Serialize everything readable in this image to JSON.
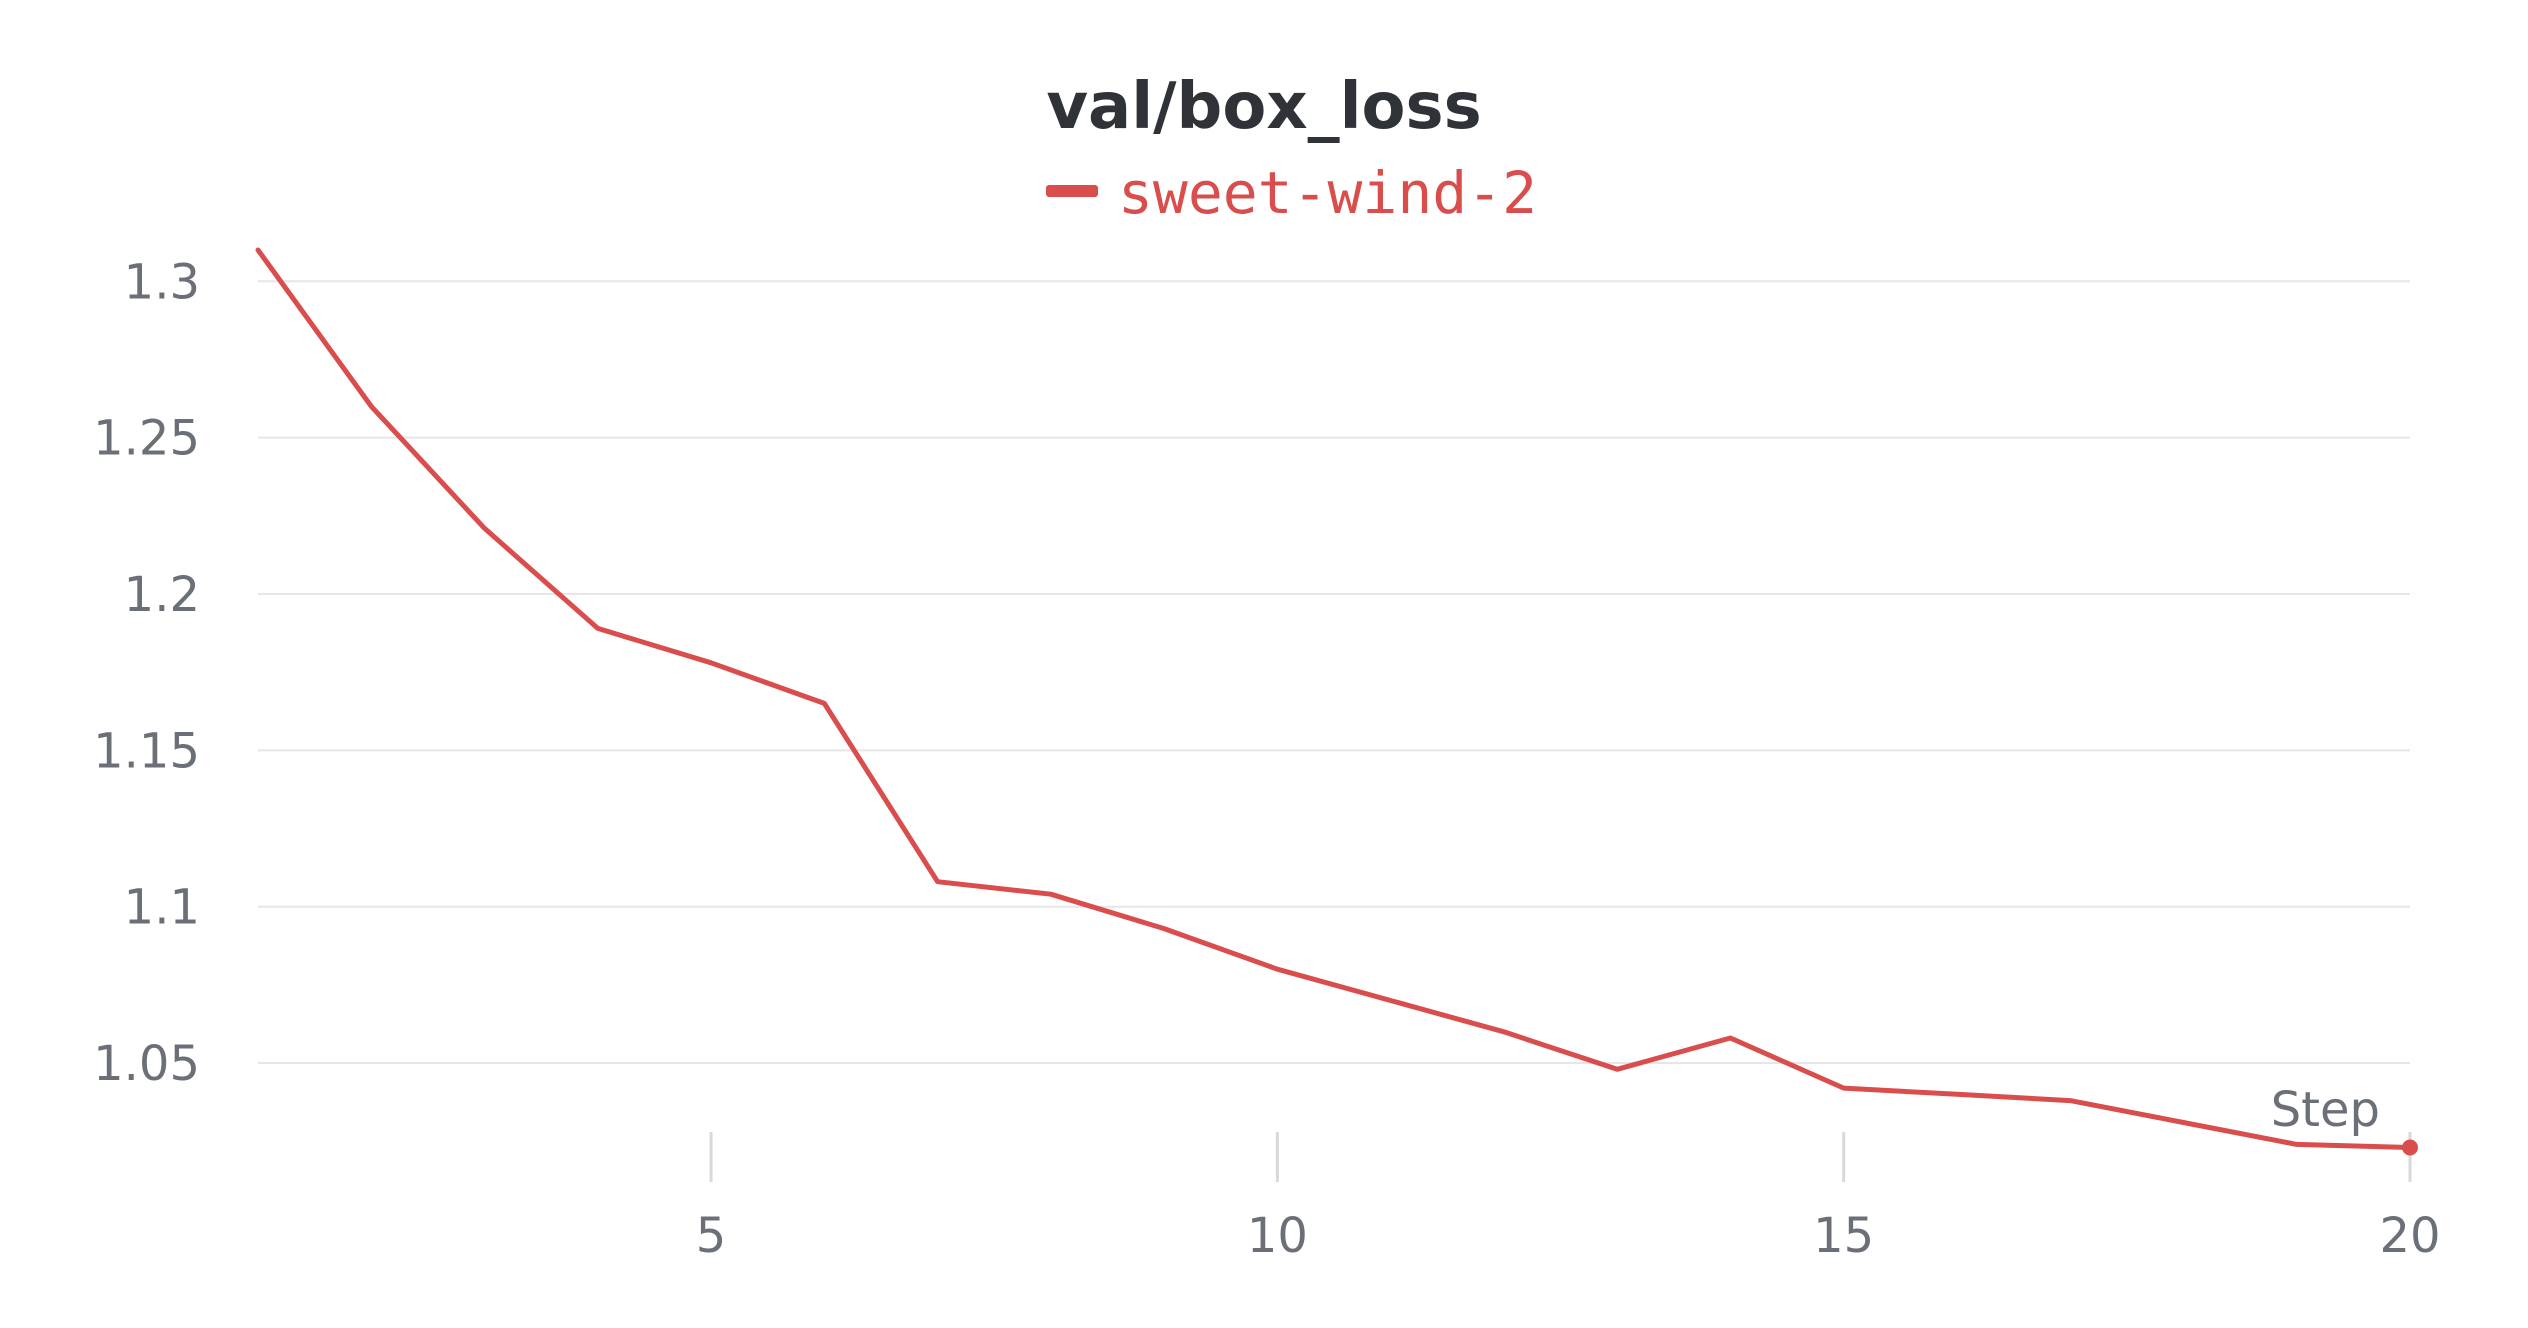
{
  "chart_data": {
    "type": "line",
    "title": "val/box_loss",
    "xlabel": "Step",
    "ylabel": "",
    "xlim": [
      1,
      20
    ],
    "ylim": [
      1.019,
      1.31
    ],
    "xticks": [
      5,
      10,
      15,
      20
    ],
    "xtick_labels": [
      "5",
      "10",
      "15",
      "20"
    ],
    "yticks": [
      1.05,
      1.1,
      1.15,
      1.2,
      1.25,
      1.3
    ],
    "ytick_labels": [
      "1.05",
      "1.1",
      "1.15",
      "1.2",
      "1.25",
      "1.3"
    ],
    "grid": true,
    "legend_position": "top-center",
    "x": [
      1,
      2,
      3,
      4,
      5,
      6,
      7,
      8,
      9,
      10,
      11,
      12,
      13,
      14,
      15,
      16,
      17,
      18,
      19,
      20
    ],
    "series": [
      {
        "name": "sweet-wind-2",
        "color": "#d94d4d",
        "values": [
          1.31,
          1.26,
          1.221,
          1.189,
          1.178,
          1.165,
          1.108,
          1.104,
          1.093,
          1.08,
          1.07,
          1.06,
          1.048,
          1.058,
          1.042,
          1.04,
          1.038,
          1.031,
          1.024,
          1.023
        ]
      }
    ]
  }
}
